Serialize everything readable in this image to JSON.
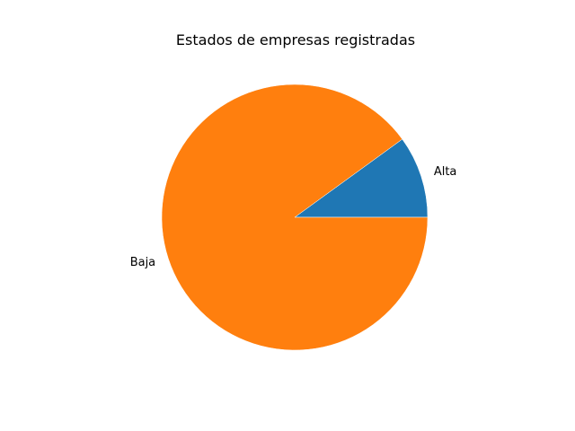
{
  "chart_data": {
    "type": "pie",
    "title": "Estados de empresas registradas",
    "slices": [
      {
        "label": "Alta",
        "value": 10,
        "color": "#1f77b4"
      },
      {
        "label": "Baja",
        "value": 90,
        "color": "#ff7f0e"
      }
    ],
    "start_angle_deg": 0,
    "direction": "counterclockwise",
    "legend": "none"
  }
}
